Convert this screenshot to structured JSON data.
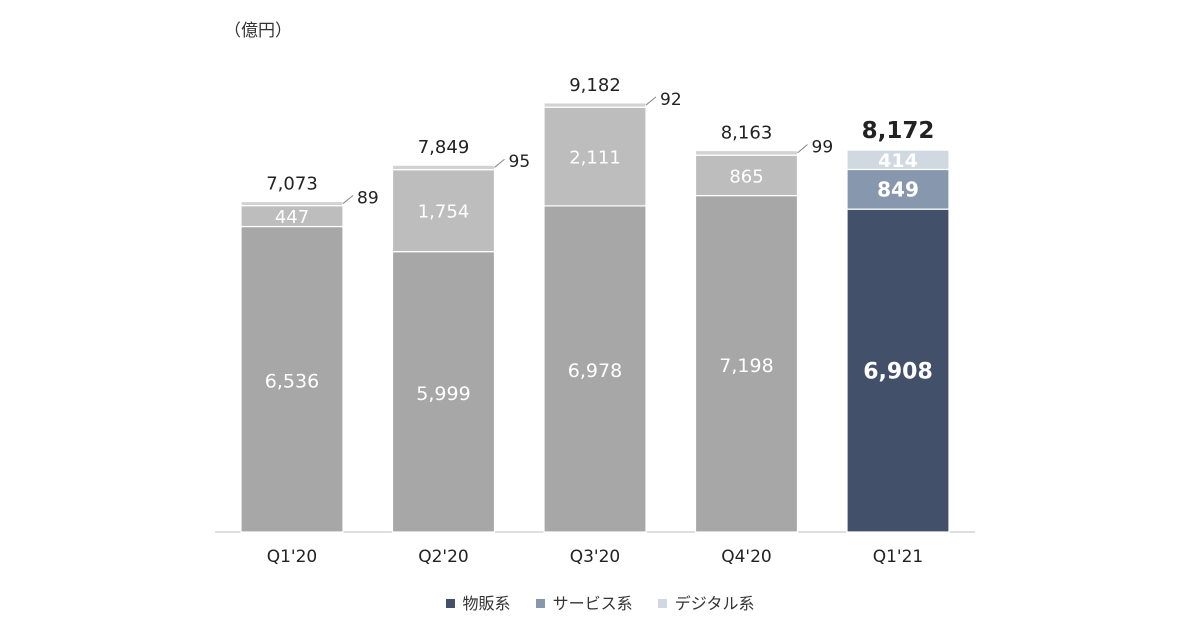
{
  "chart_data": {
    "type": "bar",
    "stacked": true,
    "unit_label": "（億円）",
    "categories": [
      "Q1'20",
      "Q2'20",
      "Q3'20",
      "Q4'20",
      "Q1'21"
    ],
    "series": [
      {
        "name": "物販系",
        "values": [
          6536,
          5999,
          6978,
          7198,
          6908
        ]
      },
      {
        "name": "サービス系",
        "values": [
          447,
          1754,
          2111,
          865,
          849
        ]
      },
      {
        "name": "デジタル系",
        "values": [
          89,
          95,
          92,
          99,
          414
        ]
      }
    ],
    "totals": [
      "7,073",
      "7,849",
      "9,182",
      "8,163",
      "8,172"
    ],
    "value_labels": [
      [
        "6,536",
        "5,999",
        "6,978",
        "7,198",
        "6,908"
      ],
      [
        "447",
        "1,754",
        "2,111",
        "865",
        "849"
      ],
      [
        "89",
        "95",
        "92",
        "99",
        "414"
      ]
    ],
    "highlight_index": 4,
    "colors": {
      "past_main": "#a7a7a7",
      "past_service": "#bdbdbd",
      "past_digital": "#d2d2d2",
      "current": [
        "#435069",
        "#8797ad",
        "#d0d8e2"
      ]
    },
    "ylim": [
      0,
      9500
    ],
    "legend_position": "bottom"
  }
}
